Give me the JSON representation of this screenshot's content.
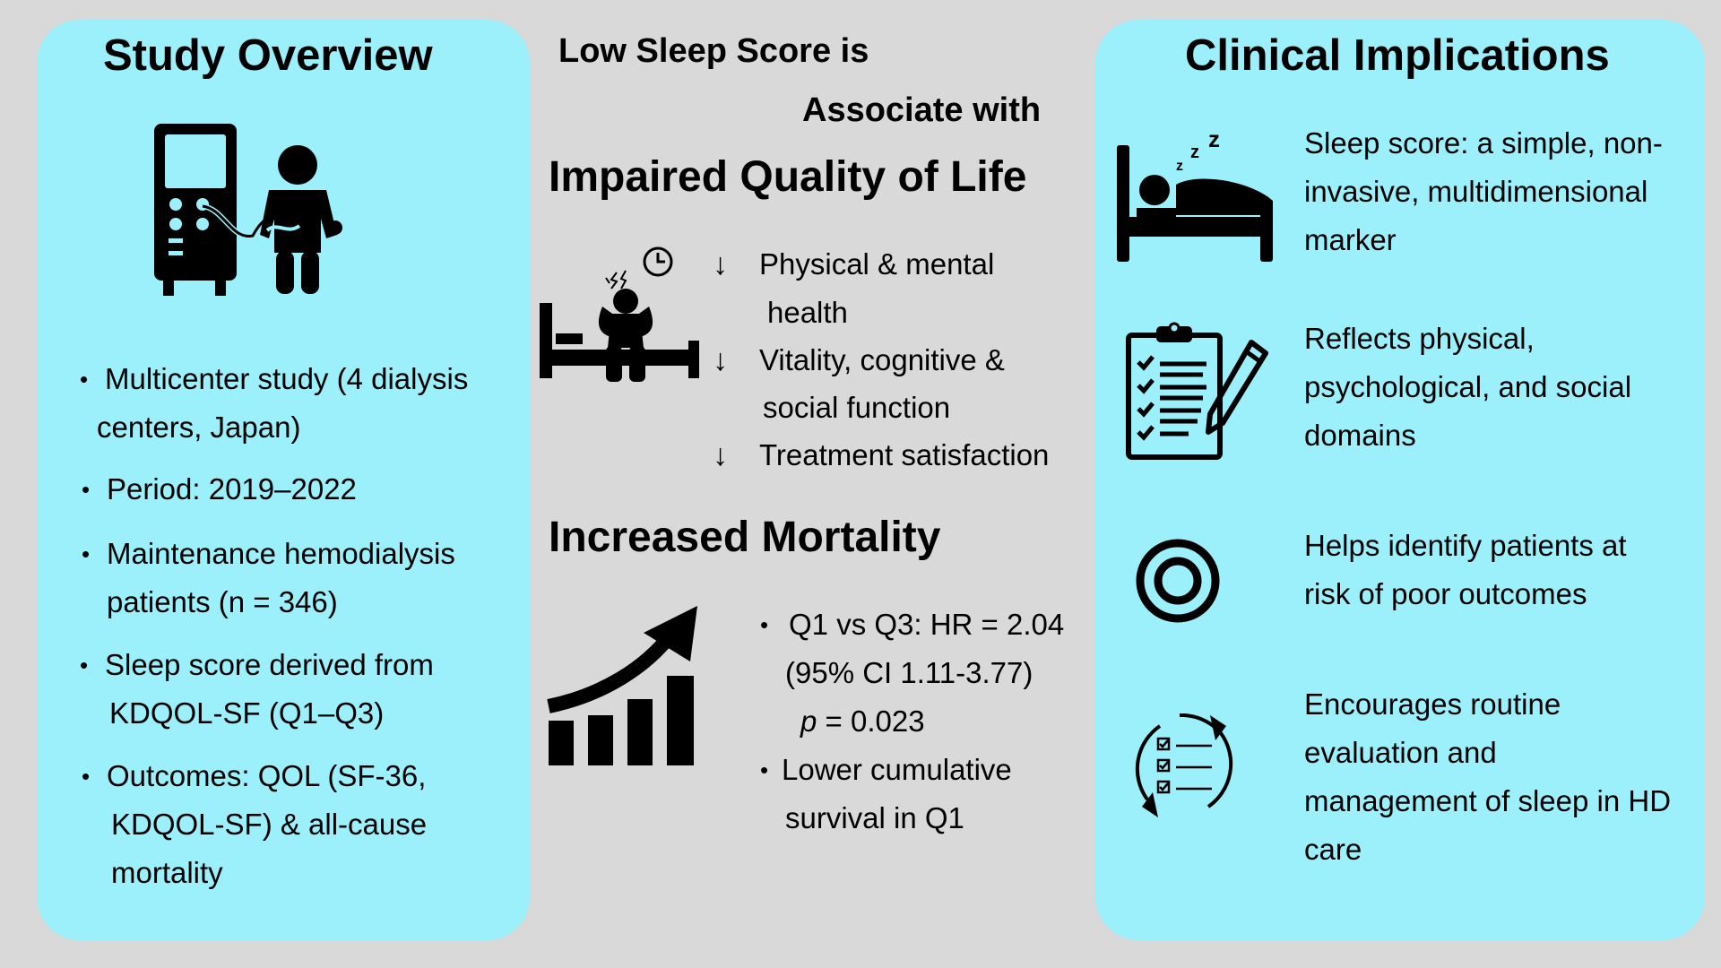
{
  "left": {
    "title": "Study Overview",
    "bullets": [
      [
        "Multicenter study (4 dialysis",
        "centers, Japan)"
      ],
      [
        "Period: 2019–2022"
      ],
      [
        "Maintenance hemodialysis",
        "patients (n = 346)"
      ],
      [
        "Sleep score derived from",
        "KDQOL-SF (Q1–Q3)"
      ],
      [
        "Outcomes: QOL (SF-36,",
        "KDQOL-SF) & all-cause",
        "mortality"
      ]
    ],
    "icons": [
      "dialysis-machine-icon",
      "patient-icon"
    ]
  },
  "middle": {
    "heading_line1": "Low Sleep Score is",
    "heading_line2": "Associate with",
    "qol_heading": "Impaired Quality of Life",
    "qol_items": [
      [
        "Physical  &  mental",
        "health"
      ],
      [
        "Vitality, cognitive  &",
        "social function"
      ],
      [
        "Treatment satisfaction"
      ]
    ],
    "arrow_symbol": "↓",
    "mortality_heading": "Increased Mortality",
    "mortality_items": {
      "hr": "Q1 vs Q3: HR = 2.04",
      "ci": "(95% CI 1.11-3.77)",
      "p_symbol": "p",
      "p_value": " = 0.023",
      "survival_line1": "Lower cumulative",
      "survival_line2": "survival in Q1"
    },
    "icons": [
      "insomnia-person-icon",
      "rising-bar-chart-icon"
    ]
  },
  "right": {
    "title": "Clinical Implications",
    "items": [
      [
        "Sleep score: a simple, non-",
        "invasive, multidimensional",
        "marker"
      ],
      [
        "Reflects physical,",
        "psychological, and social",
        "domains"
      ],
      [
        "Helps identify patients at",
        "risk of poor outcomes"
      ],
      [
        "Encourages routine",
        "evaluation and",
        "management of sleep in HD",
        "care"
      ]
    ],
    "icons": [
      "sleeping-bed-icon",
      "clipboard-checklist-icon",
      "target-icon",
      "cycle-checklist-icon"
    ]
  },
  "colors": {
    "panel": "#9cf0fb",
    "background": "#d9d9d9",
    "ink": "#000000"
  }
}
